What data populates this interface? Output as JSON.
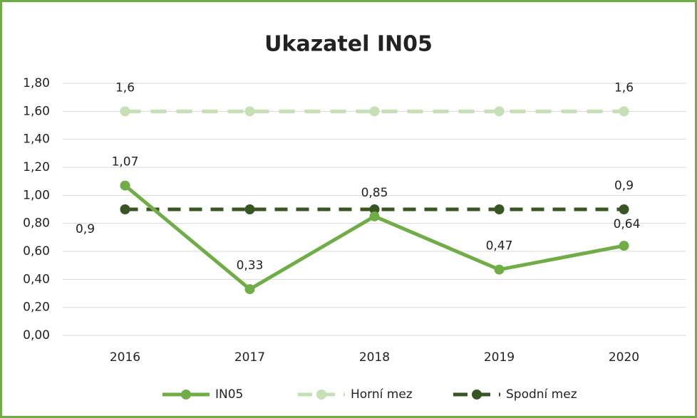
{
  "chart_data": {
    "type": "line",
    "title": "Ukazatel IN05",
    "categories": [
      "2016",
      "2017",
      "2018",
      "2019",
      "2020"
    ],
    "series": [
      {
        "name": "IN05",
        "color": "#70ad47",
        "values": [
          1.07,
          0.33,
          0.85,
          0.47,
          0.64
        ],
        "value_labels": [
          "1,07",
          "0,33",
          "0,85",
          "0,47",
          "0,64"
        ]
      },
      {
        "name": "Horní mez",
        "color": "#c5e0b4",
        "values": [
          1.6,
          1.6,
          1.6,
          1.6,
          1.6
        ],
        "value_labels": [
          "1,6",
          null,
          null,
          null,
          "1,6"
        ]
      },
      {
        "name": "Spodní mez",
        "color": "#375623",
        "values": [
          0.9,
          0.9,
          0.9,
          0.9,
          0.9
        ],
        "value_labels": [
          "0,9",
          null,
          null,
          null,
          "0,9"
        ]
      }
    ],
    "ylim": [
      0,
      1.8
    ],
    "yticks": [
      {
        "value": 0,
        "label": "0,00"
      },
      {
        "value": 0.2,
        "label": "0,20"
      },
      {
        "value": 0.4,
        "label": "0,40"
      },
      {
        "value": 0.6,
        "label": "0,60"
      },
      {
        "value": 0.8,
        "label": "0,80"
      },
      {
        "value": 1.0,
        "label": "1,00"
      },
      {
        "value": 1.2,
        "label": "1,20"
      },
      {
        "value": 1.4,
        "label": "1,40"
      },
      {
        "value": 1.6,
        "label": "1,60"
      },
      {
        "value": 1.8,
        "label": "1,80"
      }
    ],
    "grid": true,
    "legend": "bottom"
  }
}
